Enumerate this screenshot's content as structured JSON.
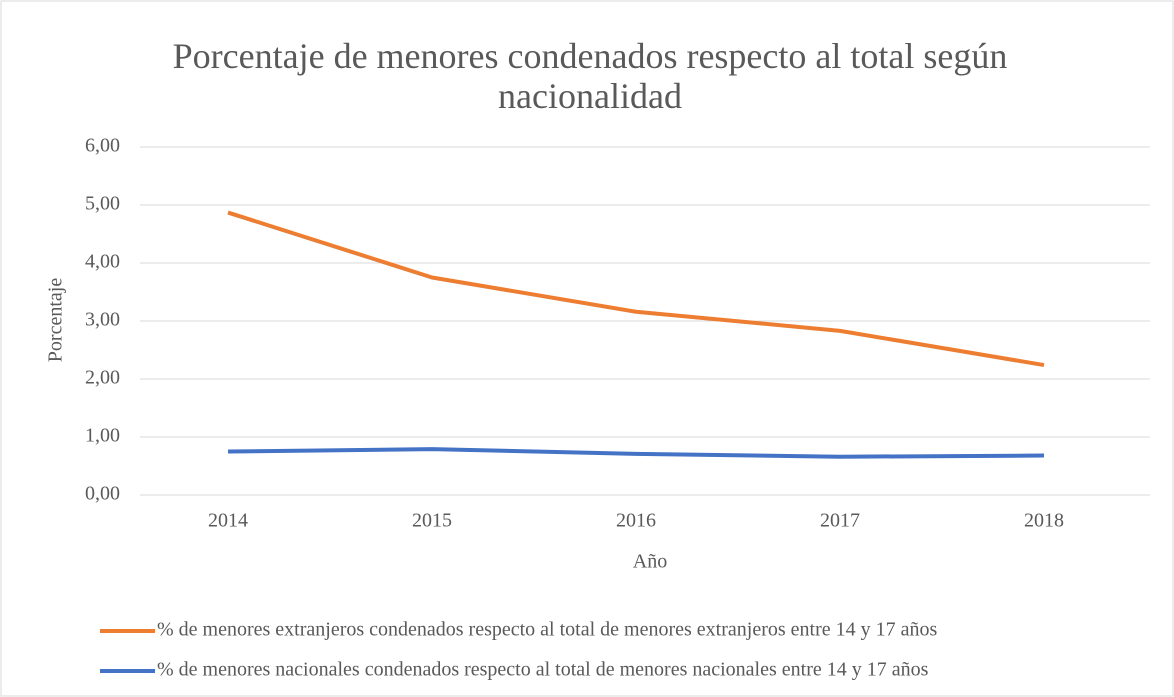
{
  "chart_data": {
    "type": "line",
    "title": "Porcentaje de menores condenados respecto al total según nacionalidad",
    "xlabel": "Año",
    "ylabel": "Porcentaje",
    "categories": [
      "2014",
      "2015",
      "2016",
      "2017",
      "2018"
    ],
    "series": [
      {
        "name": "% de menores extranjeros condenados respecto al total de menores extranjeros entre 14 y 17 años",
        "color": "#ed7d31",
        "values": [
          4.87,
          3.75,
          3.16,
          2.83,
          2.24
        ]
      },
      {
        "name": "% de menores nacionales condenados respecto al total de menores nacionales entre 14 y 17 años",
        "color": "#4472c4",
        "values": [
          0.75,
          0.79,
          0.71,
          0.66,
          0.68
        ]
      }
    ],
    "ylim": [
      0,
      6
    ],
    "yticks": [
      {
        "value": 0,
        "label": "0,00"
      },
      {
        "value": 1,
        "label": "1,00"
      },
      {
        "value": 2,
        "label": "2,00"
      },
      {
        "value": 3,
        "label": "3,00"
      },
      {
        "value": 4,
        "label": "4,00"
      },
      {
        "value": 5,
        "label": "5,00"
      },
      {
        "value": 6,
        "label": "6,00"
      }
    ],
    "grid": true,
    "legend": "bottom"
  }
}
